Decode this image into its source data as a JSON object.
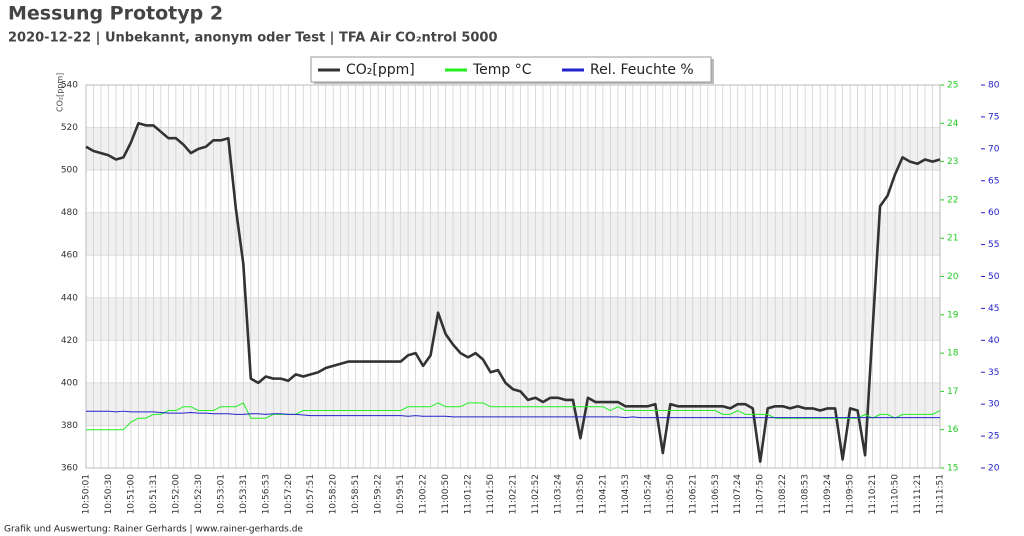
{
  "chart_data": {
    "type": "line",
    "title": "Messung Prototyp 2",
    "subtitle": "2020-12-22 | Unbekannt, anonym oder Test | TFA Air CO₂ntrol 5000",
    "footer": "Grafik und Auswertung: Rainer Gerhards | www.rainer-gerhards.de",
    "y_label": "CO₂[ppm]",
    "categories": [
      "10:50:01",
      null,
      null,
      "10:50:30",
      null,
      null,
      "10:51:00",
      null,
      null,
      "10:51:31",
      null,
      null,
      "10:52:00",
      null,
      null,
      "10:52:30",
      null,
      null,
      "10:53:01",
      null,
      null,
      "10:53:31",
      null,
      null,
      "10:56:53",
      null,
      null,
      "10:57:20",
      null,
      null,
      "10:57:51",
      null,
      null,
      "10:58:20",
      null,
      null,
      "10:58:51",
      null,
      null,
      "10:59:22",
      null,
      null,
      "10:59:51",
      null,
      null,
      "11:00:22",
      null,
      null,
      "11:00:50",
      null,
      null,
      "11:01:22",
      null,
      null,
      "11:01:50",
      null,
      null,
      "11:02:21",
      null,
      null,
      "11:02:52",
      null,
      null,
      "11:03:24",
      null,
      null,
      "11:03:50",
      null,
      null,
      "11:04:21",
      null,
      null,
      "11:04:53",
      null,
      null,
      "11:05:24",
      null,
      null,
      "11:05:50",
      null,
      null,
      "11:06:21",
      null,
      null,
      "11:06:53",
      null,
      null,
      "11:07:24",
      null,
      null,
      "11:07:50",
      null,
      null,
      "11:08:22",
      null,
      null,
      "11:08:53",
      null,
      null,
      "11:09:24",
      null,
      null,
      "11:09:50",
      null,
      null,
      "11:10:21",
      null,
      null,
      "11:10:50",
      null,
      null,
      "11:11:21",
      null,
      null,
      "11:11:51"
    ],
    "series": [
      {
        "name": "CO₂[ppm]",
        "color": "#333333",
        "values": [
          511,
          509,
          508,
          507,
          505,
          506,
          513,
          522,
          521,
          521,
          518,
          515,
          515,
          512,
          508,
          510,
          511,
          514,
          514,
          515,
          482,
          456,
          402,
          400,
          403,
          402,
          402,
          401,
          404,
          403,
          404,
          405,
          407,
          408,
          409,
          410,
          410,
          410,
          410,
          410,
          410,
          410,
          410,
          413,
          414,
          408,
          413,
          433,
          423,
          418,
          414,
          412,
          414,
          411,
          405,
          406,
          400,
          397,
          396,
          392,
          393,
          391,
          393,
          393,
          392,
          392,
          374,
          393,
          391,
          391,
          391,
          391,
          389,
          389,
          389,
          389,
          390,
          367,
          390,
          389,
          389,
          389,
          389,
          389,
          389,
          389,
          388,
          390,
          390,
          388,
          363,
          388,
          389,
          389,
          388,
          389,
          388,
          388,
          387,
          388,
          388,
          364,
          388,
          387,
          366,
          425,
          483,
          488,
          498,
          506,
          504,
          503,
          505,
          504,
          505
        ]
      },
      {
        "name": "Temp °C",
        "color": "#22ee22",
        "axis": "y2",
        "values": [
          16.0,
          16.0,
          16.0,
          16.0,
          16.0,
          16.0,
          16.2,
          16.3,
          16.3,
          16.4,
          16.4,
          16.5,
          16.5,
          16.6,
          16.6,
          16.5,
          16.5,
          16.5,
          16.6,
          16.6,
          16.6,
          16.7,
          16.3,
          16.3,
          16.3,
          16.4,
          16.4,
          16.4,
          16.4,
          16.5,
          16.5,
          16.5,
          16.5,
          16.5,
          16.5,
          16.5,
          16.5,
          16.5,
          16.5,
          16.5,
          16.5,
          16.5,
          16.5,
          16.6,
          16.6,
          16.6,
          16.6,
          16.7,
          16.6,
          16.6,
          16.6,
          16.7,
          16.7,
          16.7,
          16.6,
          16.6,
          16.6,
          16.6,
          16.6,
          16.6,
          16.6,
          16.6,
          16.6,
          16.6,
          16.6,
          16.6,
          16.6,
          16.6,
          16.6,
          16.6,
          16.5,
          16.6,
          16.5,
          16.5,
          16.5,
          16.5,
          16.5,
          16.5,
          16.5,
          16.5,
          16.5,
          16.5,
          16.5,
          16.5,
          16.5,
          16.4,
          16.4,
          16.5,
          16.4,
          16.4,
          16.4,
          16.4,
          16.3,
          16.3,
          16.3,
          16.3,
          16.3,
          16.3,
          16.3,
          16.3,
          16.3,
          16.3,
          16.3,
          16.3,
          16.4,
          16.3,
          16.4,
          16.4,
          16.3,
          16.4,
          16.4,
          16.4,
          16.4,
          16.4,
          16.5
        ]
      },
      {
        "name": "Rel. Feuchte %",
        "color": "#2222cc",
        "axis": "y3",
        "values": [
          28.9,
          28.9,
          28.9,
          28.9,
          28.8,
          28.9,
          28.8,
          28.8,
          28.8,
          28.8,
          28.7,
          28.6,
          28.6,
          28.6,
          28.7,
          28.6,
          28.6,
          28.5,
          28.5,
          28.5,
          28.4,
          28.4,
          28.5,
          28.5,
          28.4,
          28.5,
          28.5,
          28.4,
          28.4,
          28.3,
          28.2,
          28.2,
          28.2,
          28.2,
          28.2,
          28.2,
          28.2,
          28.2,
          28.2,
          28.2,
          28.2,
          28.2,
          28.2,
          28.1,
          28.2,
          28.1,
          28.1,
          28.1,
          28.1,
          28.0,
          28.0,
          28.0,
          28.0,
          28.0,
          28.0,
          28.0,
          28.0,
          28.0,
          28.0,
          28.0,
          28.0,
          28.0,
          28.0,
          28.0,
          28.0,
          28.0,
          28.0,
          28.0,
          28.0,
          28.0,
          28.0,
          28.0,
          27.9,
          28.0,
          27.9,
          27.9,
          27.9,
          27.9,
          27.9,
          27.9,
          27.9,
          27.9,
          27.9,
          27.9,
          27.9,
          27.9,
          27.9,
          27.9,
          27.9,
          27.9,
          27.9,
          27.9,
          27.9,
          27.9,
          27.9,
          27.9,
          27.9,
          27.9,
          27.9,
          27.9,
          27.9,
          27.9,
          27.9,
          27.9,
          27.9,
          27.9,
          27.9,
          27.9,
          27.9,
          27.9,
          27.9,
          27.9,
          27.9,
          27.9,
          27.9
        ]
      }
    ],
    "ylim": [
      360,
      540
    ],
    "yticks": [
      360,
      380,
      400,
      420,
      440,
      460,
      480,
      500,
      520,
      540
    ],
    "y2lim": [
      15,
      25
    ],
    "y2ticks": [
      15,
      16,
      17,
      18,
      19,
      20,
      21,
      22,
      23,
      24,
      25
    ],
    "y3lim": [
      20,
      80
    ],
    "y3ticks": [
      20,
      25,
      30,
      35,
      40,
      45,
      50,
      55,
      60,
      65,
      70,
      75,
      80
    ],
    "grid": true
  }
}
